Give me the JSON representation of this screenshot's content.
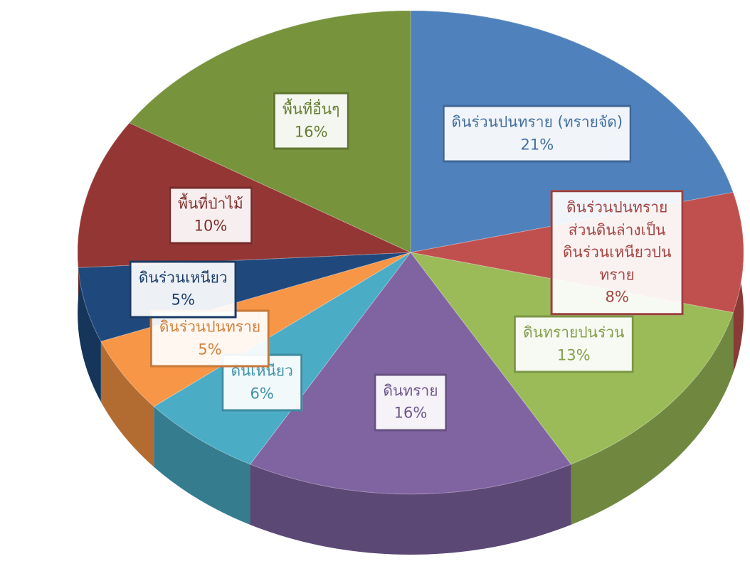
{
  "chart_data": {
    "type": "pie",
    "categories": [
      "ดินร่วนปนทราย (ทรายจัด)",
      "ดินร่วนปนทราย ส่วนดินล่างเป็น ดินร่วนเหนียวปนทราย",
      "ดินทรายปนร่วน",
      "ดินทราย",
      "ดินเหนียว",
      "ดินร่วนปนทราย",
      "ดินร่วนเหนียว",
      "พื้นที่ป่าไม้",
      "พื้นที่อื่นๆ"
    ],
    "values": [
      21,
      8,
      13,
      16,
      6,
      5,
      5,
      10,
      16
    ],
    "value_labels": [
      "21%",
      "8%",
      "13%",
      "16%",
      "6%",
      "5%",
      "5%",
      "10%",
      "16%"
    ],
    "colors": [
      "#4f81bd",
      "#c0504d",
      "#9bbb59",
      "#8064a2",
      "#4bacc6",
      "#f79646",
      "#1f497d",
      "#943634",
      "#77933c"
    ]
  }
}
